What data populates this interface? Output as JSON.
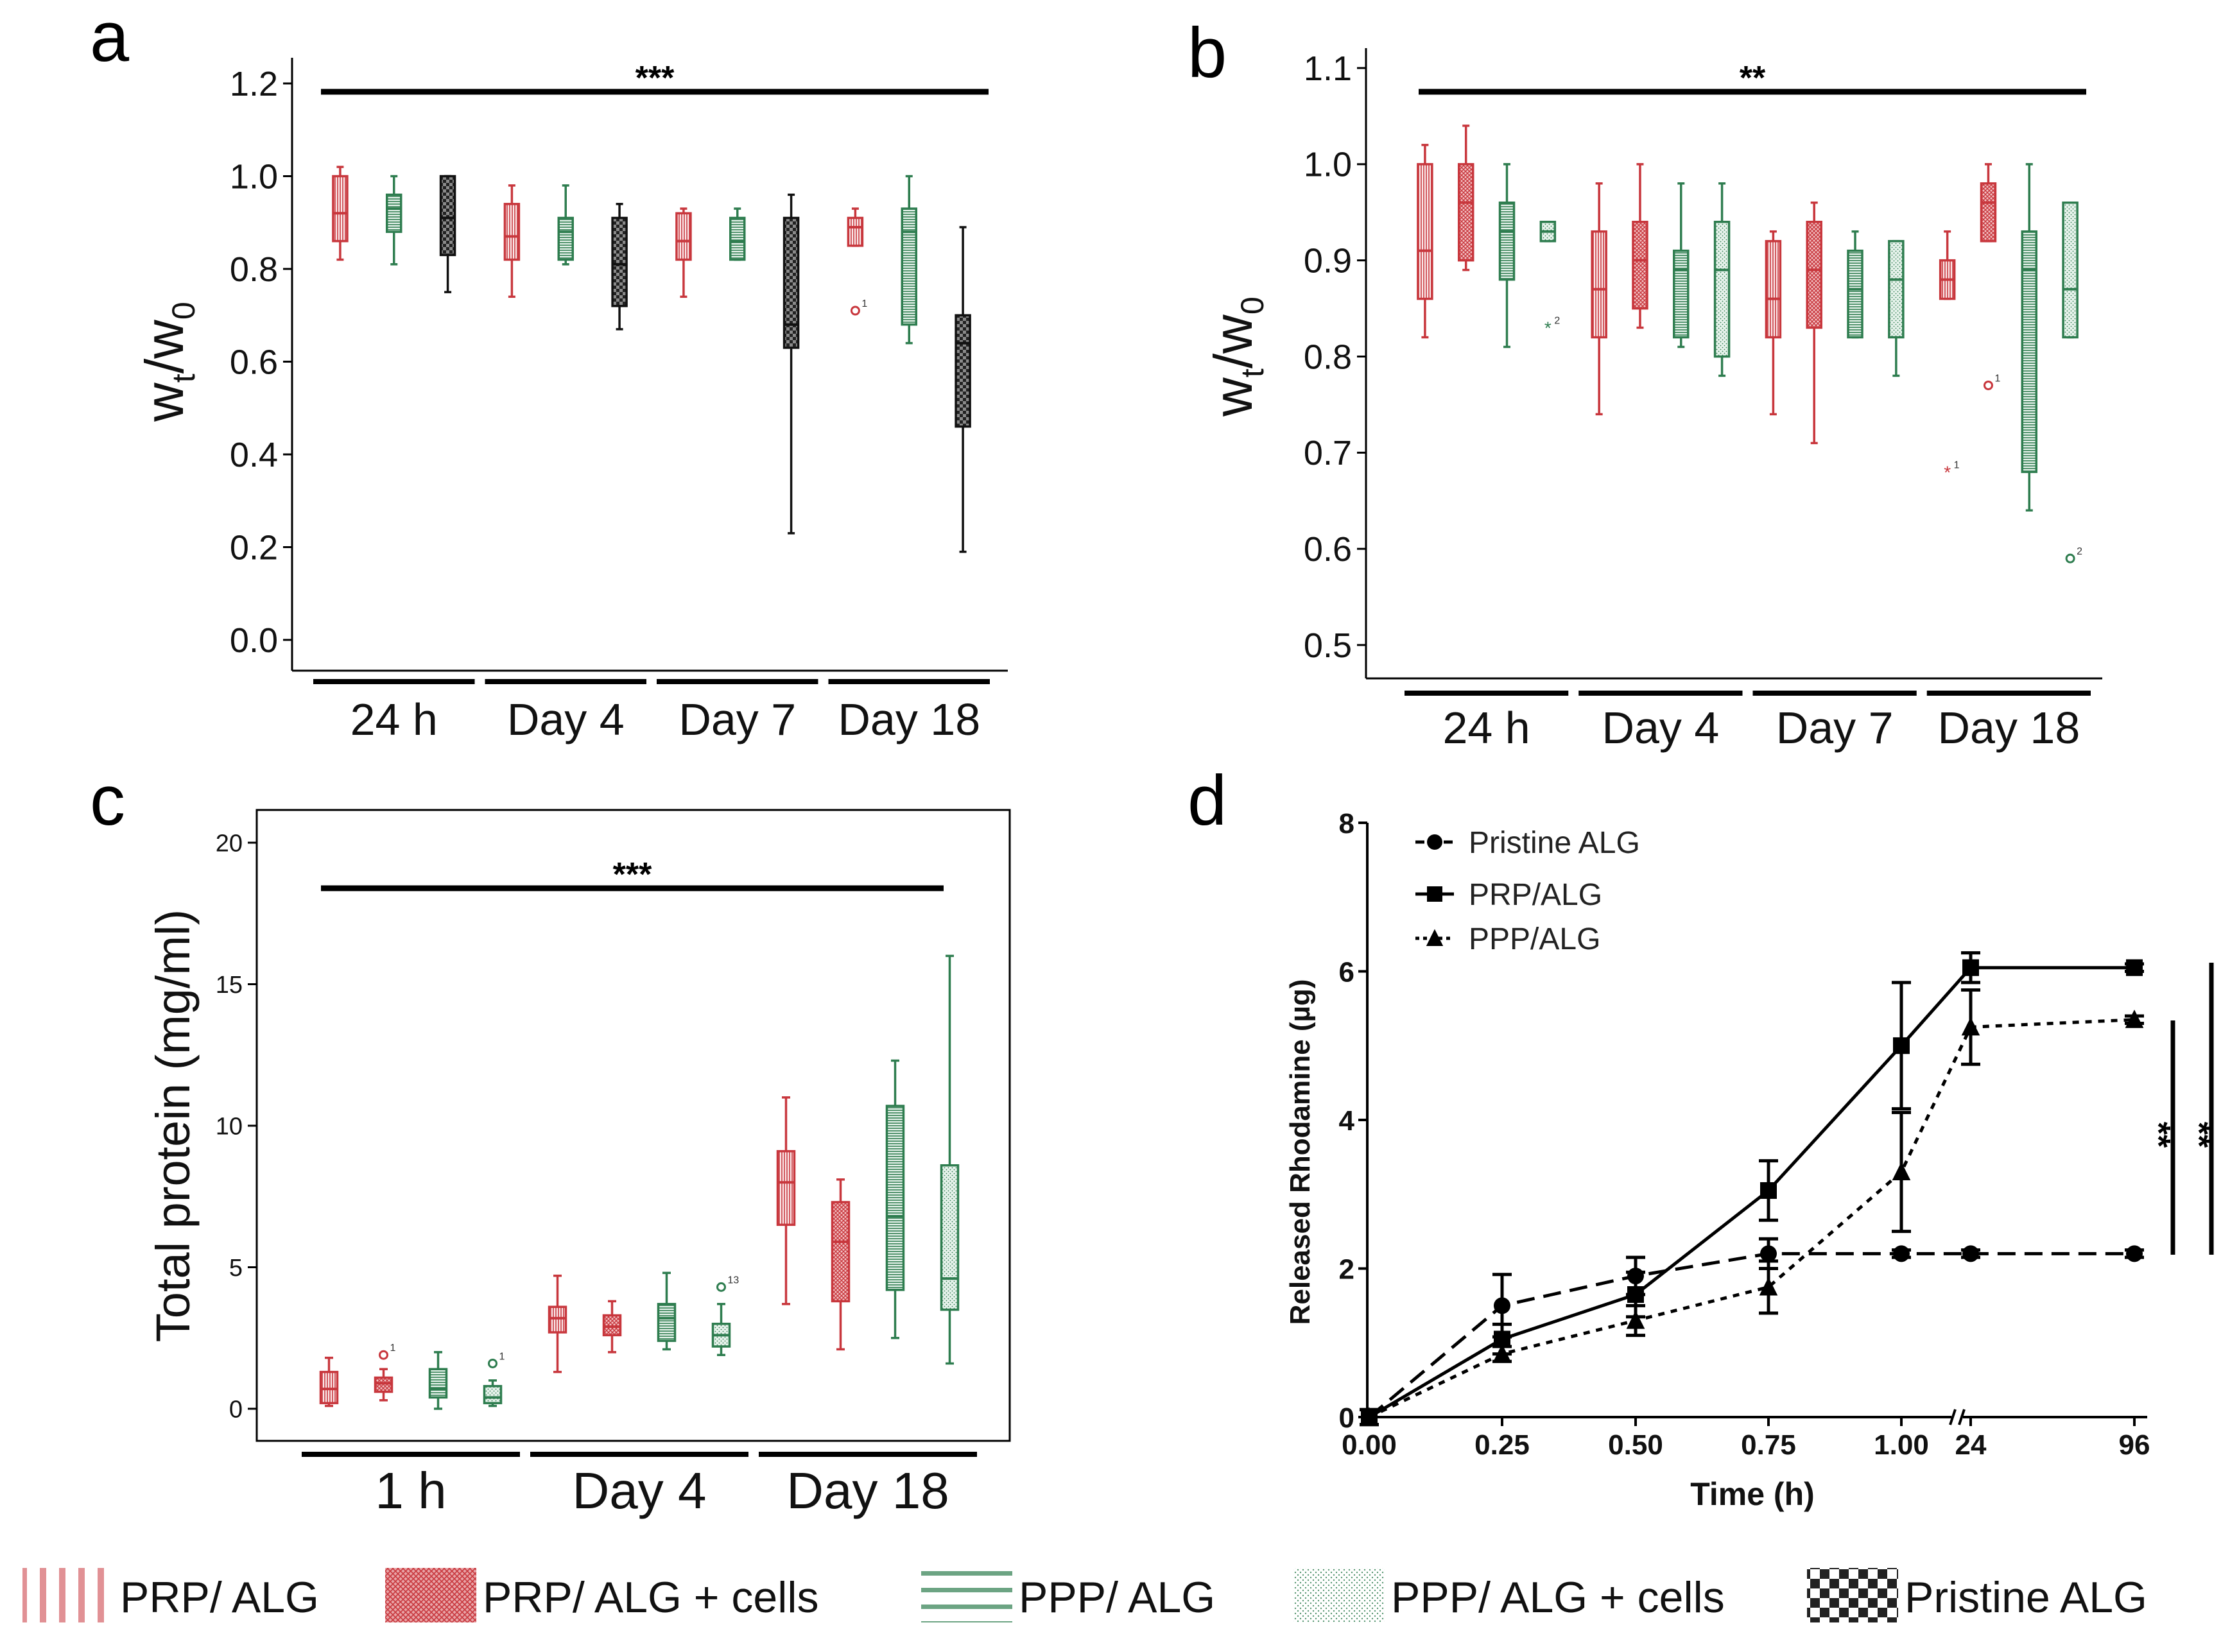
{
  "colors": {
    "prp": "#c8373d",
    "ppp": "#2e7d4f",
    "pristine": "#333333",
    "axis": "#000000",
    "lightgray": "#cfcfcf"
  },
  "panels": {
    "a": {
      "letter": "a"
    },
    "b": {
      "letter": "b"
    },
    "c": {
      "letter": "c"
    },
    "d": {
      "letter": "d"
    }
  },
  "legend": [
    {
      "label": "PRP/ ALG",
      "pattern": "prp-vstripes"
    },
    {
      "label": "PRP/ ALG + cells",
      "pattern": "prp-crosshatch"
    },
    {
      "label": "PPP/ ALG",
      "pattern": "ppp-hstripes"
    },
    {
      "label": "PPP/ ALG + cells",
      "pattern": "ppp-dots"
    },
    {
      "label": "Pristine ALG",
      "pattern": "checker"
    }
  ],
  "chart_data": [
    {
      "panel": "a",
      "type": "box",
      "ylabel_main": "w",
      "ylabel_sub1": "t",
      "ylabel_slash": "/w",
      "ylabel_sub2": "0",
      "ylim": [
        0,
        1.2
      ],
      "yticks": [
        "0.0",
        "0.2",
        "0.4",
        "0.6",
        "0.8",
        "1.0",
        "1.2"
      ],
      "groups": [
        "24 h",
        "Day 4",
        "Day 7",
        "Day 18"
      ],
      "significance": "***",
      "boxes": [
        {
          "group": "24 h",
          "series": "PRP/ ALG",
          "min": 0.82,
          "q1": 0.86,
          "median": 0.92,
          "q3": 1.0,
          "max": 1.02
        },
        {
          "group": "24 h",
          "series": "PPP/ ALG",
          "min": 0.81,
          "q1": 0.88,
          "median": 0.93,
          "q3": 0.96,
          "max": 1.0
        },
        {
          "group": "24 h",
          "series": "Pristine ALG",
          "min": 0.75,
          "q1": 0.83,
          "median": 0.91,
          "q3": 1.0,
          "max": 1.0
        },
        {
          "group": "Day 4",
          "series": "PRP/ ALG",
          "min": 0.74,
          "q1": 0.82,
          "median": 0.87,
          "q3": 0.94,
          "max": 0.98
        },
        {
          "group": "Day 4",
          "series": "PPP/ ALG",
          "min": 0.81,
          "q1": 0.82,
          "median": 0.88,
          "q3": 0.91,
          "max": 0.98
        },
        {
          "group": "Day 4",
          "series": "Pristine ALG",
          "min": 0.67,
          "q1": 0.72,
          "median": 0.81,
          "q3": 0.91,
          "max": 0.94
        },
        {
          "group": "Day 7",
          "series": "PRP/ ALG",
          "min": 0.74,
          "q1": 0.82,
          "median": 0.86,
          "q3": 0.92,
          "max": 0.93
        },
        {
          "group": "Day 7",
          "series": "PPP/ ALG",
          "min": 0.82,
          "q1": 0.82,
          "median": 0.86,
          "q3": 0.91,
          "max": 0.93
        },
        {
          "group": "Day 7",
          "series": "Pristine ALG",
          "min": 0.23,
          "q1": 0.63,
          "median": 0.68,
          "q3": 0.91,
          "max": 0.96
        },
        {
          "group": "Day 18",
          "series": "PRP/ ALG",
          "min": 0.85,
          "q1": 0.85,
          "median": 0.89,
          "q3": 0.91,
          "max": 0.93,
          "outlier": 0.71,
          "outlier_label": "1"
        },
        {
          "group": "Day 18",
          "series": "PPP/ ALG",
          "min": 0.64,
          "q1": 0.68,
          "median": 0.88,
          "q3": 0.93,
          "max": 1.0
        },
        {
          "group": "Day 18",
          "series": "Pristine ALG",
          "min": 0.19,
          "q1": 0.46,
          "median": 0.64,
          "q3": 0.7,
          "max": 0.89
        }
      ]
    },
    {
      "panel": "b",
      "type": "box",
      "ylabel_main": "w",
      "ylabel_sub1": "t",
      "ylabel_slash": "/w",
      "ylabel_sub2": "0",
      "ylim": [
        0.5,
        1.1
      ],
      "yticks": [
        "0.5",
        "0.6",
        "0.7",
        "0.8",
        "0.9",
        "1.0",
        "1.1"
      ],
      "groups": [
        "24 h",
        "Day 4",
        "Day 7",
        "Day 18"
      ],
      "significance": "**",
      "boxes": [
        {
          "group": "24 h",
          "series": "PRP/ ALG",
          "min": 0.82,
          "q1": 0.86,
          "median": 0.91,
          "q3": 1.0,
          "max": 1.02
        },
        {
          "group": "24 h",
          "series": "PRP/ ALG + cells",
          "min": 0.89,
          "q1": 0.9,
          "median": 0.96,
          "q3": 1.0,
          "max": 1.04
        },
        {
          "group": "24 h",
          "series": "PPP/ ALG",
          "min": 0.81,
          "q1": 0.88,
          "median": 0.93,
          "q3": 0.96,
          "max": 1.0
        },
        {
          "group": "24 h",
          "series": "PPP/ ALG + cells",
          "min": 0.92,
          "q1": 0.92,
          "median": 0.93,
          "q3": 0.94,
          "max": 0.94,
          "outlier": 0.83,
          "outlier_label": "2",
          "outlier_marker": "star"
        },
        {
          "group": "Day 4",
          "series": "PRP/ ALG",
          "min": 0.74,
          "q1": 0.82,
          "median": 0.87,
          "q3": 0.93,
          "max": 0.98
        },
        {
          "group": "Day 4",
          "series": "PRP/ ALG + cells",
          "min": 0.83,
          "q1": 0.85,
          "median": 0.9,
          "q3": 0.94,
          "max": 1.0
        },
        {
          "group": "Day 4",
          "series": "PPP/ ALG",
          "min": 0.81,
          "q1": 0.82,
          "median": 0.89,
          "q3": 0.91,
          "max": 0.98
        },
        {
          "group": "Day 4",
          "series": "PPP/ ALG + cells",
          "min": 0.78,
          "q1": 0.8,
          "median": 0.89,
          "q3": 0.94,
          "max": 0.98
        },
        {
          "group": "Day 7",
          "series": "PRP/ ALG",
          "min": 0.74,
          "q1": 0.82,
          "median": 0.86,
          "q3": 0.92,
          "max": 0.93
        },
        {
          "group": "Day 7",
          "series": "PRP/ ALG + cells",
          "min": 0.71,
          "q1": 0.83,
          "median": 0.89,
          "q3": 0.94,
          "max": 0.96
        },
        {
          "group": "Day 7",
          "series": "PPP/ ALG",
          "min": 0.82,
          "q1": 0.82,
          "median": 0.87,
          "q3": 0.91,
          "max": 0.93
        },
        {
          "group": "Day 7",
          "series": "PPP/ ALG + cells",
          "min": 0.78,
          "q1": 0.82,
          "median": 0.88,
          "q3": 0.92,
          "max": 0.92
        },
        {
          "group": "Day 18",
          "series": "PRP/ ALG",
          "min": 0.86,
          "q1": 0.86,
          "median": 0.88,
          "q3": 0.9,
          "max": 0.93,
          "outlier": 0.68,
          "outlier_label": "1",
          "outlier_marker": "star"
        },
        {
          "group": "Day 18",
          "series": "PRP/ ALG + cells",
          "min": 0.92,
          "q1": 0.92,
          "median": 0.96,
          "q3": 0.98,
          "max": 1.0,
          "outlier": 0.77,
          "outlier_label": "1",
          "outlier_marker": "circle"
        },
        {
          "group": "Day 18",
          "series": "PPP/ ALG",
          "min": 0.64,
          "q1": 0.68,
          "median": 0.89,
          "q3": 0.93,
          "max": 1.0
        },
        {
          "group": "Day 18",
          "series": "PPP/ ALG + cells",
          "min": 0.82,
          "q1": 0.82,
          "median": 0.87,
          "q3": 0.96,
          "max": 0.96,
          "outlier": 0.59,
          "outlier_label": "2",
          "outlier_marker": "circle"
        }
      ]
    },
    {
      "panel": "c",
      "type": "box",
      "ylabel": "Total protein (mg/ml)",
      "ylim": [
        0,
        20
      ],
      "yticks": [
        "0",
        "5",
        "10",
        "15",
        "20"
      ],
      "groups": [
        "1 h",
        "Day 4",
        "Day 18"
      ],
      "significance": "***",
      "boxes": [
        {
          "group": "1 h",
          "series": "PRP/ ALG",
          "min": 0.1,
          "q1": 0.2,
          "median": 0.7,
          "q3": 1.3,
          "max": 1.8
        },
        {
          "group": "1 h",
          "series": "PRP/ ALG + cells",
          "min": 0.3,
          "q1": 0.6,
          "median": 0.9,
          "q3": 1.1,
          "max": 1.4,
          "outlier": 1.9,
          "outlier_label": "1"
        },
        {
          "group": "1 h",
          "series": "PPP/ ALG",
          "min": 0.0,
          "q1": 0.4,
          "median": 0.7,
          "q3": 1.4,
          "max": 2.0
        },
        {
          "group": "1 h",
          "series": "PPP/ ALG + cells",
          "min": 0.1,
          "q1": 0.2,
          "median": 0.4,
          "q3": 0.8,
          "max": 1.0,
          "outlier": 1.6,
          "outlier_label": "1"
        },
        {
          "group": "Day 4",
          "series": "PRP/ ALG",
          "min": 1.3,
          "q1": 2.7,
          "median": 3.2,
          "q3": 3.6,
          "max": 4.7
        },
        {
          "group": "Day 4",
          "series": "PRP/ ALG + cells",
          "min": 2.0,
          "q1": 2.6,
          "median": 2.9,
          "q3": 3.3,
          "max": 3.8
        },
        {
          "group": "Day 4",
          "series": "PPP/ ALG",
          "min": 2.1,
          "q1": 2.4,
          "median": 3.2,
          "q3": 3.7,
          "max": 4.8
        },
        {
          "group": "Day 4",
          "series": "PPP/ ALG + cells",
          "min": 1.9,
          "q1": 2.2,
          "median": 2.6,
          "q3": 3.0,
          "max": 3.7,
          "outlier": 4.3,
          "outlier_label": "13"
        },
        {
          "group": "Day 18",
          "series": "PRP/ ALG",
          "min": 3.7,
          "q1": 6.5,
          "median": 8.0,
          "q3": 9.1,
          "max": 11.0
        },
        {
          "group": "Day 18",
          "series": "PRP/ ALG + cells",
          "min": 2.1,
          "q1": 3.8,
          "median": 5.9,
          "q3": 7.3,
          "max": 8.1
        },
        {
          "group": "Day 18",
          "series": "PPP/ ALG",
          "min": 2.5,
          "q1": 4.2,
          "median": 6.8,
          "q3": 10.7,
          "max": 12.3
        },
        {
          "group": "Day 18",
          "series": "PPP/ ALG + cells",
          "min": 1.6,
          "q1": 3.5,
          "median": 4.6,
          "q3": 8.6,
          "max": 16.0
        }
      ]
    },
    {
      "panel": "d",
      "type": "line",
      "title": "",
      "xlabel": "Time (h)",
      "ylabel": "Released Rhodamine (µg)",
      "ylim": [
        0,
        8
      ],
      "yticks": [
        "0",
        "2",
        "4",
        "6",
        "8"
      ],
      "xticks": [
        "0.00",
        "0.25",
        "0.50",
        "0.75",
        "1.00",
        "24",
        "96"
      ],
      "x_axis_break": "between 1.00 and 24",
      "significance_right": [
        "**",
        "**"
      ],
      "series": [
        {
          "name": "Pristine ALG",
          "marker": "circle",
          "line": "dashed",
          "x": [
            "0.00",
            "0.25",
            "0.50",
            "0.75",
            "1.00",
            "24",
            "96"
          ],
          "values": [
            0.0,
            1.5,
            1.9,
            2.2,
            2.2,
            2.2,
            2.2
          ],
          "errors": [
            0.1,
            0.42,
            0.25,
            0.2,
            0.05,
            0.05,
            0.05
          ]
        },
        {
          "name": "PRP/ALG",
          "marker": "square",
          "line": "solid",
          "x": [
            "0.00",
            "0.25",
            "0.50",
            "0.75",
            "1.00",
            "24",
            "96"
          ],
          "values": [
            0.0,
            1.05,
            1.65,
            3.05,
            5.0,
            6.05,
            6.05
          ],
          "errors": [
            0.1,
            0.2,
            0.3,
            0.4,
            0.85,
            0.2,
            0.05
          ]
        },
        {
          "name": "PPP/ALG",
          "marker": "triangle",
          "line": "dotted",
          "x": [
            "0.00",
            "0.25",
            "0.50",
            "0.75",
            "1.00",
            "24",
            "96"
          ],
          "values": [
            0.0,
            0.85,
            1.3,
            1.75,
            3.3,
            5.25,
            5.35
          ],
          "errors": [
            0.1,
            0.1,
            0.2,
            0.35,
            0.8,
            0.5,
            0.05
          ]
        }
      ]
    }
  ]
}
